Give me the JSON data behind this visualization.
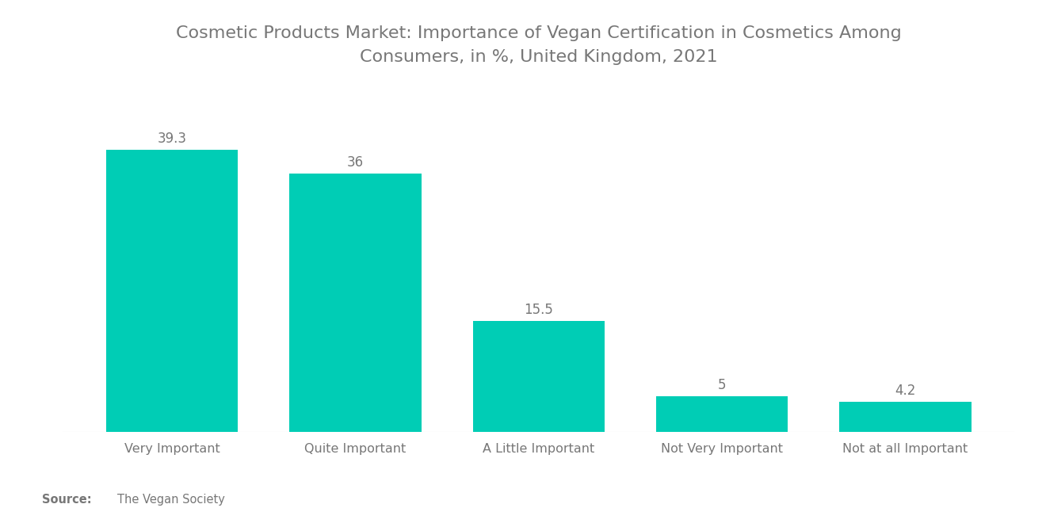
{
  "title": "Cosmetic Products Market: Importance of Vegan Certification in Cosmetics Among\nConsumers, in %, United Kingdom, 2021",
  "categories": [
    "Very Important",
    "Quite Important",
    "A Little Important",
    "Not Very Important",
    "Not at all Important"
  ],
  "values": [
    39.3,
    36,
    15.5,
    5,
    4.2
  ],
  "bar_color": "#00CDB5",
  "title_fontsize": 16,
  "label_fontsize": 11.5,
  "value_fontsize": 12,
  "source_bold": "Source:",
  "source_text": "The Vegan Society",
  "background_color": "#ffffff",
  "text_color": "#777777",
  "ylim": [
    0,
    47
  ],
  "bar_width": 0.72
}
